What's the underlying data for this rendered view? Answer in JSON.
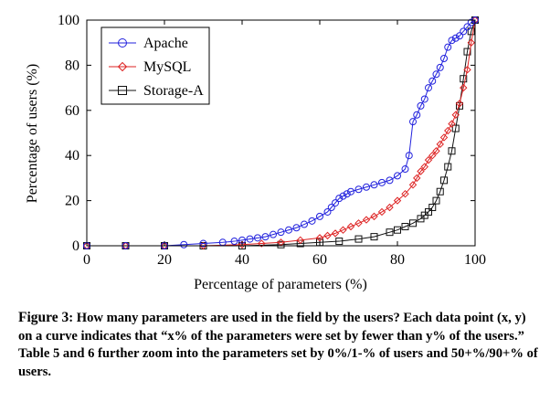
{
  "chart_data": {
    "type": "line",
    "xlabel": "Percentage of parameters (%)",
    "ylabel": "Percentage of users (%)",
    "xlim": [
      0,
      100
    ],
    "ylim": [
      0,
      100
    ],
    "xticks": [
      "0",
      "20",
      "40",
      "60",
      "80",
      "100"
    ],
    "yticks": [
      "0",
      "20",
      "40",
      "60",
      "80",
      "100"
    ],
    "grid": false,
    "legend_position": "top-left",
    "series": [
      {
        "name": "Apache",
        "color": "#2222dd",
        "marker": "circle",
        "x": [
          0,
          10,
          20,
          25,
          30,
          35,
          38,
          40,
          42,
          44,
          46,
          48,
          50,
          52,
          54,
          56,
          58,
          60,
          62,
          63,
          64,
          65,
          66,
          67,
          68,
          70,
          72,
          74,
          76,
          78,
          80,
          82,
          83,
          84,
          85,
          86,
          87,
          88,
          89,
          90,
          91,
          92,
          93,
          94,
          95,
          96,
          97,
          98,
          99,
          100
        ],
        "y": [
          0,
          0,
          0,
          0.5,
          1,
          1.5,
          2,
          2.5,
          3,
          3.5,
          4,
          5,
          6,
          7,
          8,
          9.5,
          11,
          13,
          15,
          17,
          19,
          21,
          22,
          23,
          24,
          25,
          26,
          27,
          28,
          29,
          31,
          34,
          40,
          55,
          58,
          62,
          65,
          70,
          73,
          76,
          79,
          83,
          88,
          91,
          92,
          93,
          95,
          97,
          99,
          100
        ]
      },
      {
        "name": "MySQL",
        "color": "#dd2222",
        "marker": "diamond",
        "x": [
          0,
          10,
          20,
          30,
          40,
          45,
          50,
          55,
          60,
          62,
          64,
          66,
          68,
          70,
          72,
          74,
          76,
          78,
          80,
          82,
          84,
          85,
          86,
          87,
          88,
          89,
          90,
          91,
          92,
          93,
          94,
          95,
          96,
          97,
          98,
          99,
          100
        ],
        "y": [
          0,
          0,
          0,
          0,
          0.5,
          1,
          1.5,
          2.5,
          3.5,
          4.5,
          5.5,
          7,
          8.5,
          10,
          11.5,
          13,
          15,
          17,
          20,
          23,
          27,
          30,
          33,
          35,
          38,
          40,
          42,
          45,
          48,
          51,
          54,
          58,
          63,
          70,
          78,
          90,
          100
        ]
      },
      {
        "name": "Storage-A",
        "color": "#111111",
        "marker": "square",
        "x": [
          0,
          10,
          20,
          30,
          40,
          50,
          55,
          60,
          65,
          70,
          74,
          78,
          80,
          82,
          84,
          86,
          87,
          88,
          89,
          90,
          91,
          92,
          93,
          94,
          95,
          96,
          97,
          98,
          99,
          100
        ],
        "y": [
          0,
          0,
          0,
          0,
          0,
          0.5,
          1,
          1.5,
          2,
          3,
          4,
          6,
          7,
          8.5,
          10,
          12,
          13.5,
          15,
          17,
          20,
          24,
          29,
          35,
          42,
          52,
          62,
          74,
          86,
          95,
          100
        ]
      }
    ]
  },
  "caption": {
    "label": "Figure 3",
    "text": ": How many parameters are used in the field by the users? Each data point (x, y) on a curve indicates that “x% of the parameters were set by fewer than y% of the users.” Table 5 and 6 further zoom into the parameters set by 0%/1-% of users and 50+%/90+% of users."
  }
}
